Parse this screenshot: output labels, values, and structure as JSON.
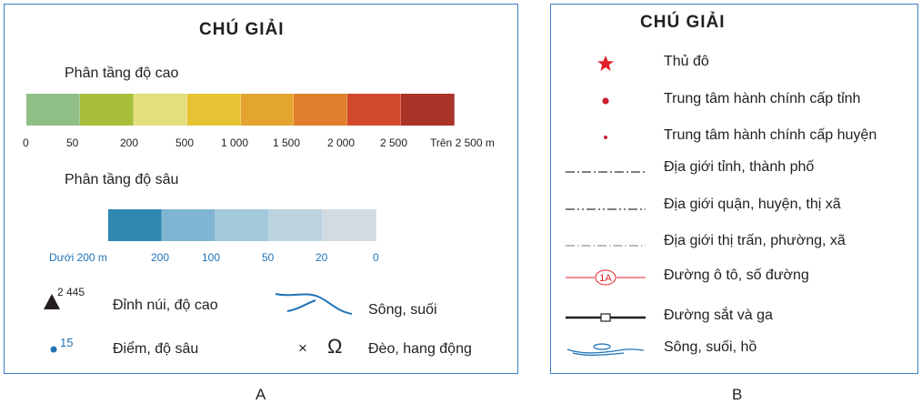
{
  "panel_a": {
    "title": "CHÚ GIẢI",
    "elevation": {
      "heading": "Phân tầng độ cao",
      "colors": [
        "#8fbf85",
        "#a7bf3b",
        "#e3df7e",
        "#e7c233",
        "#e3a52f",
        "#e07f2b",
        "#d24a2b",
        "#a93427"
      ],
      "ticks": [
        "0",
        "50",
        "200",
        "500",
        "1 000",
        "1 500",
        "2 000",
        "2 500",
        "Trên 2 500 m"
      ]
    },
    "depth": {
      "heading": "Phân tầng độ sâu",
      "colors": [
        "#2f88b2",
        "#7fb5d2",
        "#a4c9dc",
        "#bdd3df",
        "#d3dbe2"
      ],
      "ticks": [
        "Dưới 200 m",
        "200",
        "100",
        "50",
        "20",
        "0"
      ]
    },
    "symbols": {
      "peak_value": "2 445",
      "peak_label": "Đỉnh núi, độ cao",
      "depth_value": "15",
      "depth_label": "Điểm, độ sâu",
      "river_label": "Sông, suối",
      "pass_label": "Đèo, hang động",
      "pass_glyph": "×",
      "cave_glyph": "Ω"
    },
    "caption": "A"
  },
  "panel_b": {
    "title": "CHÚ GIẢI",
    "items": [
      {
        "label": "Thủ đô",
        "symbol": "star"
      },
      {
        "label": "Trung tâm hành chính cấp tỉnh",
        "symbol": "dot-large"
      },
      {
        "label": "Trung tâm hành chính cấp huyện",
        "symbol": "dot-small"
      },
      {
        "label": "Địa giới tỉnh, thành phố",
        "symbol": "dash-dot"
      },
      {
        "label": "Địa giới quận, huyện, thị xã",
        "symbol": "dash-dot-dot"
      },
      {
        "label": "Địa giới thị trấn, phường, xã",
        "symbol": "thin-dash-dot"
      },
      {
        "label": "Đường ô tô, số đường",
        "symbol": "road",
        "road_number": "1A"
      },
      {
        "label": "Đường sắt và ga",
        "symbol": "rail"
      },
      {
        "label": "Sông, suối, hồ",
        "symbol": "water"
      }
    ],
    "caption": "B"
  },
  "colors": {
    "frame": "#3b7fc4",
    "capital": "#e2202a",
    "admin_dot": "#c8202e",
    "road": "#e2202a",
    "water": "#1f73b7"
  }
}
